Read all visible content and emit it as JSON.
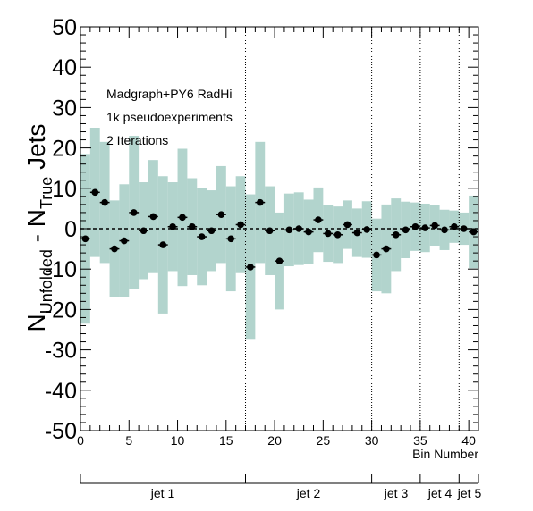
{
  "chart_data": {
    "type": "scatter",
    "ylabel_main": "N",
    "ylabel_sub1": "Unfolded",
    "ylabel_mid": " - N",
    "ylabel_sub2": "True",
    "ylabel_tail": " Jets",
    "xlabel": "Bin Number",
    "ylim": [
      -50,
      50
    ],
    "xlim": [
      0,
      41
    ],
    "y_ticks": [
      "50",
      "40",
      "30",
      "20",
      "10",
      "0",
      "-10",
      "-20",
      "-30",
      "-40",
      "-50"
    ],
    "x_ticks": [
      "0",
      "5",
      "10",
      "15",
      "20",
      "25",
      "30",
      "35",
      "40"
    ],
    "annotations": [
      "Madgraph+PY6 RadHi",
      "1k pseudoexperiments",
      "2 Iterations"
    ],
    "jet_boundaries": [
      17,
      30,
      35,
      39
    ],
    "jet_labels": [
      "jet 1",
      "jet 2",
      "jet 3",
      "jet 4",
      "jet 5"
    ],
    "points": [
      {
        "x": 0.5,
        "y": -2.5
      },
      {
        "x": 1.5,
        "y": 9.0
      },
      {
        "x": 2.5,
        "y": 6.5
      },
      {
        "x": 3.5,
        "y": -5.0
      },
      {
        "x": 4.5,
        "y": -3.0
      },
      {
        "x": 5.5,
        "y": 4.0
      },
      {
        "x": 6.5,
        "y": -0.5
      },
      {
        "x": 7.5,
        "y": 3.0
      },
      {
        "x": 8.5,
        "y": -4.0
      },
      {
        "x": 9.5,
        "y": 0.5
      },
      {
        "x": 10.5,
        "y": 2.8
      },
      {
        "x": 11.5,
        "y": 0.5
      },
      {
        "x": 12.5,
        "y": -2.0
      },
      {
        "x": 13.5,
        "y": -0.5
      },
      {
        "x": 14.5,
        "y": 3.5
      },
      {
        "x": 15.5,
        "y": -2.5
      },
      {
        "x": 16.5,
        "y": 1.0
      },
      {
        "x": 17.5,
        "y": -9.5
      },
      {
        "x": 18.5,
        "y": 6.5
      },
      {
        "x": 19.5,
        "y": -0.5
      },
      {
        "x": 20.5,
        "y": -8.0
      },
      {
        "x": 21.5,
        "y": -0.3
      },
      {
        "x": 22.5,
        "y": 0.0
      },
      {
        "x": 23.5,
        "y": -0.8
      },
      {
        "x": 24.5,
        "y": 2.2
      },
      {
        "x": 25.5,
        "y": -1.2
      },
      {
        "x": 26.5,
        "y": -1.5
      },
      {
        "x": 27.5,
        "y": 1.0
      },
      {
        "x": 28.5,
        "y": -1.0
      },
      {
        "x": 29.5,
        "y": -0.2
      },
      {
        "x": 30.5,
        "y": -6.5
      },
      {
        "x": 31.5,
        "y": -5.0
      },
      {
        "x": 32.5,
        "y": -1.5
      },
      {
        "x": 33.5,
        "y": -0.3
      },
      {
        "x": 34.5,
        "y": 0.5
      },
      {
        "x": 35.5,
        "y": 0.2
      },
      {
        "x": 36.5,
        "y": 0.8
      },
      {
        "x": 37.5,
        "y": -0.3
      },
      {
        "x": 38.5,
        "y": 0.5
      },
      {
        "x": 39.5,
        "y": 0.0
      },
      {
        "x": 40.5,
        "y": -0.8
      }
    ],
    "band_halfwidth": [
      21,
      16,
      15,
      12,
      14,
      19,
      12,
      14,
      17,
      11,
      17,
      12,
      12,
      10,
      12,
      13,
      12,
      18,
      15,
      11,
      12,
      9,
      9,
      8,
      8,
      7,
      7,
      6,
      6,
      7,
      9,
      11,
      9,
      7,
      6,
      6,
      5,
      5,
      4,
      4,
      9
    ],
    "band_color": "#a5ccc4",
    "marker_color": "#000000",
    "grid": false
  }
}
